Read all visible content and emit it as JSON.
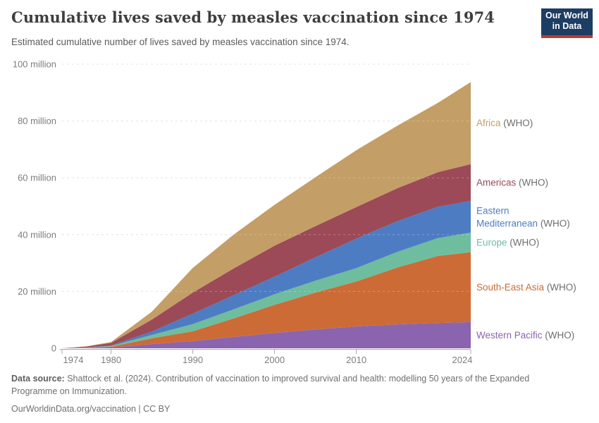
{
  "header": {
    "logo": {
      "line1": "Our World",
      "line2": "in Data",
      "bg_color": "#1d3d63",
      "accent_color": "#c1392f"
    }
  },
  "chart_data": {
    "type": "area",
    "stacked": true,
    "title": "Cumulative lives saved by measles vaccination since 1974",
    "subtitle": "Estimated cumulative number of lives saved by measles vaccination since 1974.",
    "xlabel": "",
    "ylabel": "",
    "xlim": [
      1974,
      2024
    ],
    "ylim": [
      0,
      100
    ],
    "unit": "million lives saved",
    "grid": "dashed-horizontal",
    "legend_position": "right-of-area",
    "x": [
      1974,
      1977,
      1980,
      1985,
      1990,
      1995,
      2000,
      2005,
      2010,
      2015,
      2020,
      2024
    ],
    "series": [
      {
        "name": "Western Pacific",
        "suffix": "(WHO)",
        "color": "#8A64AE",
        "legend_wrap": false,
        "values": [
          0,
          0.08,
          0.25,
          1.5,
          2.5,
          4.0,
          5.4,
          6.6,
          7.7,
          8.4,
          8.9,
          9.2
        ]
      },
      {
        "name": "South-East Asia",
        "suffix": "(WHO)",
        "color": "#CC6B36",
        "legend_wrap": false,
        "values": [
          0,
          0.1,
          0.3,
          2.0,
          3.5,
          6.5,
          9.9,
          13.0,
          15.8,
          20.0,
          23.6,
          24.6
        ]
      },
      {
        "name": "Europe",
        "suffix": "(WHO)",
        "color": "#6FBD9F",
        "legend_wrap": false,
        "values": [
          0,
          0.08,
          0.25,
          1.2,
          2.5,
          3.2,
          3.7,
          4.2,
          4.7,
          5.5,
          6.3,
          6.9
        ]
      },
      {
        "name": "Eastern Mediterranean",
        "suffix": "(WHO)",
        "color": "#4E7CC3",
        "legend_wrap": true,
        "values": [
          0,
          0.05,
          0.2,
          1.2,
          3.7,
          5.0,
          6.2,
          8.2,
          10.4,
          10.8,
          11.0,
          11.2
        ]
      },
      {
        "name": "Americas",
        "suffix": "(WHO)",
        "color": "#9C4A57",
        "legend_wrap": false,
        "values": [
          0,
          0.3,
          0.9,
          4.2,
          7.4,
          9.4,
          10.9,
          11.0,
          11.1,
          11.6,
          12.2,
          12.9
        ]
      },
      {
        "name": "Africa",
        "suffix": "(WHO)",
        "color": "#C39E67",
        "legend_wrap": false,
        "values": [
          0,
          0.1,
          0.3,
          2.8,
          8.7,
          11.9,
          14.4,
          17.2,
          20.0,
          22.0,
          24.4,
          28.9
        ]
      }
    ],
    "yticks": {
      "values": [
        0,
        20,
        40,
        60,
        80,
        100
      ],
      "labels": [
        "0",
        "20 million",
        "40 million",
        "60 million",
        "80 million",
        "100 million"
      ]
    },
    "xticks": [
      1974,
      1980,
      1990,
      2000,
      2010,
      2024
    ],
    "colors": {
      "grid": "#dcdcdc",
      "grid_over_area": "#ffffff",
      "axis": "#a8a8a8",
      "tick_label": "#7d7d7d",
      "legend_suffix": "#6e6e6e"
    }
  },
  "footer": {
    "source_label": "Data source:",
    "source_text": "Shattock et al. (2024). Contribution of vaccination to improved survival and health: modelling 50 years of the Expanded Programme on Immunization.",
    "link_text": "OurWorldinData.org/vaccination | CC BY"
  }
}
